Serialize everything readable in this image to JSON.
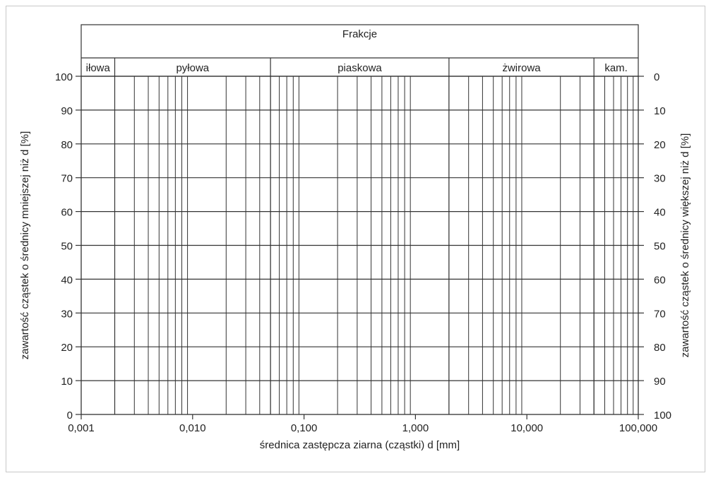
{
  "chart_data": {
    "type": "grain-size-distribution-grid",
    "x_scale": "log",
    "xlabel": "średnica zastępcza ziarna (cząstki) d [mm]",
    "ylabel_left": "zawartość cząstek o średnicy mniejszej niż d [%]",
    "ylabel_right": "zawartość cząstek o średnicy większej niż d [%]",
    "xlim": [
      0.001,
      100
    ],
    "ylim": [
      0,
      100
    ],
    "x_ticks": [
      {
        "value": 0.001,
        "label": "0,001"
      },
      {
        "value": 0.01,
        "label": "0,010"
      },
      {
        "value": 0.1,
        "label": "0,100"
      },
      {
        "value": 1,
        "label": "1,000"
      },
      {
        "value": 10,
        "label": "10,000"
      },
      {
        "value": 100,
        "label": "100,000"
      }
    ],
    "y_ticks_left": [
      "0",
      "10",
      "20",
      "30",
      "40",
      "50",
      "60",
      "70",
      "80",
      "90",
      "100"
    ],
    "y_ticks_right": [
      "100",
      "90",
      "80",
      "70",
      "60",
      "50",
      "40",
      "30",
      "20",
      "10",
      "0"
    ],
    "fractions_title": "Frakcje",
    "fractions": [
      {
        "label": "iłowa",
        "from": 0.001,
        "to": 0.002
      },
      {
        "label": "pyłowa",
        "from": 0.002,
        "to": 0.05
      },
      {
        "label": "piaskowa",
        "from": 0.05,
        "to": 2
      },
      {
        "label": "żwirowa",
        "from": 2,
        "to": 40
      },
      {
        "label": "kam.",
        "from": 40,
        "to": 100
      }
    ],
    "grid": true
  }
}
